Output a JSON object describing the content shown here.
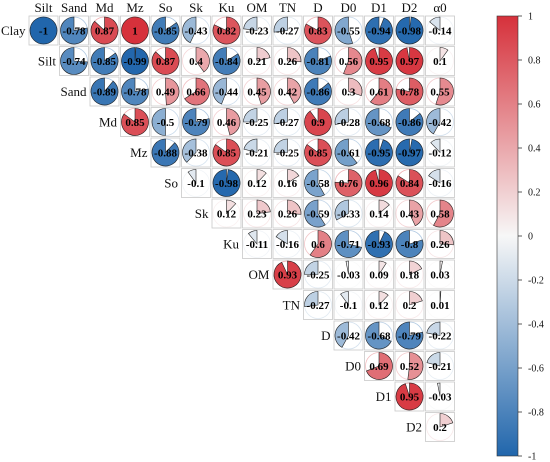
{
  "chart_data": {
    "type": "heatmap",
    "title": "",
    "variables": [
      "Clay",
      "Silt",
      "Sand",
      "Md",
      "Mz",
      "So",
      "Sk",
      "Ku",
      "OM",
      "TN",
      "D",
      "D0",
      "D1",
      "D2",
      "α0"
    ],
    "upper_triangle": [
      [
        -1,
        -0.78,
        0.87,
        1,
        -0.85,
        -0.43,
        0.82,
        -0.23,
        -0.27,
        0.83,
        -0.55,
        -0.94,
        -0.98,
        -0.14
      ],
      [
        -0.74,
        -0.85,
        -0.99,
        0.87,
        0.4,
        -0.84,
        0.21,
        0.26,
        -0.81,
        0.56,
        0.95,
        0.97,
        0.1
      ],
      [
        -0.89,
        -0.78,
        0.49,
        0.66,
        -0.44,
        0.45,
        0.42,
        -0.86,
        0.3,
        0.61,
        0.78,
        0.55
      ],
      [
        0.85,
        -0.5,
        -0.79,
        0.46,
        -0.25,
        -0.27,
        0.9,
        -0.28,
        -0.68,
        -0.86,
        -0.42
      ],
      [
        -0.88,
        -0.38,
        0.85,
        -0.21,
        -0.25,
        0.85,
        -0.61,
        -0.95,
        -0.97,
        -0.12
      ],
      [
        -0.1,
        -0.98,
        0.12,
        0.16,
        -0.58,
        0.76,
        0.96,
        0.84,
        -0.16
      ],
      [
        0.12,
        0.23,
        0.26,
        -0.59,
        -0.33,
        0.14,
        0.43,
        0.58
      ],
      [
        -0.11,
        -0.16,
        0.6,
        -0.71,
        -0.93,
        -0.8,
        0.26
      ],
      [
        0.93,
        -0.25,
        -0.03,
        0.09,
        0.18,
        0.03
      ],
      [
        -0.27,
        -0.1,
        0.12,
        0.2,
        0.01
      ],
      [
        -0.42,
        -0.68,
        -0.79,
        -0.22
      ],
      [
        0.69,
        0.52,
        -0.21
      ],
      [
        0.95,
        -0.03
      ],
      [
        0.2
      ]
    ],
    "color_scale": {
      "min": -1,
      "max": 1,
      "ticks": [
        1,
        0.8,
        0.6,
        0.4,
        0.2,
        0,
        -0.2,
        -0.4,
        -0.6,
        -0.8,
        -1
      ],
      "negative_color": "#2166ac",
      "mid_color": "#f7f7f7",
      "positive_color": "#d6313b"
    },
    "legend_placement": "right"
  }
}
